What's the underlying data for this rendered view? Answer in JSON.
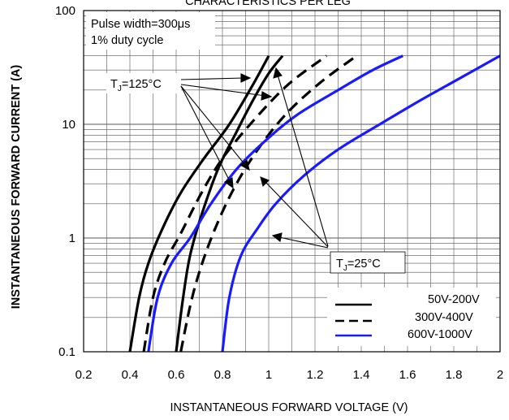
{
  "chart_data": {
    "type": "line",
    "title": "CHARACTERISTICS PER LEG",
    "xlabel": "INSTANTANEOUS FORWARD VOLTAGE (V)",
    "ylabel": "INSTANTANEOUS FORWARD CURRENT (A)",
    "xlim": [
      0.2,
      2.0
    ],
    "ylim": [
      0.1,
      100
    ],
    "yscale": "log",
    "grid": true,
    "x_ticks": [
      "0.2",
      "0.4",
      "0.6",
      "0.8",
      "1",
      "1.2",
      "1.4",
      "1.6",
      "1.8",
      "2"
    ],
    "y_ticks": [
      "0.1",
      "1",
      "10",
      "100"
    ],
    "notes": [
      "Pulse width=300μs",
      "1% duty cycle"
    ],
    "annotations": [
      {
        "prefix": "T",
        "sub": "J",
        "suffix": "=125°C"
      },
      {
        "prefix": "T",
        "sub": "J",
        "suffix": "=25°C"
      }
    ],
    "legend": {
      "position": "bottom-right",
      "entries": [
        {
          "label": "50V-200V",
          "style": "solid",
          "color": "#000000"
        },
        {
          "label": "300V-400V",
          "style": "dashed",
          "color": "#000000"
        },
        {
          "label": "600V-1000V",
          "style": "solid",
          "color": "#1a1aff"
        }
      ]
    },
    "series": [
      {
        "group": "50V-200V",
        "temperature": "125°C",
        "color": "#000000",
        "style": "solid",
        "points": [
          [
            0.4,
            0.1
          ],
          [
            0.44,
            0.3
          ],
          [
            0.48,
            0.6
          ],
          [
            0.54,
            1.2
          ],
          [
            0.62,
            2.5
          ],
          [
            0.72,
            5.0
          ],
          [
            0.83,
            10
          ],
          [
            0.93,
            22
          ],
          [
            1.0,
            40
          ]
        ]
      },
      {
        "group": "50V-200V",
        "temperature": "25°C",
        "color": "#000000",
        "style": "solid",
        "points": [
          [
            0.6,
            0.1
          ],
          [
            0.63,
            0.3
          ],
          [
            0.66,
            0.7
          ],
          [
            0.71,
            1.6
          ],
          [
            0.78,
            4.0
          ],
          [
            0.86,
            8.5
          ],
          [
            0.93,
            16
          ],
          [
            1.0,
            28
          ],
          [
            1.06,
            40
          ]
        ]
      },
      {
        "group": "300V-400V",
        "temperature": "125°C",
        "color": "#000000",
        "style": "dashed",
        "points": [
          [
            0.46,
            0.1
          ],
          [
            0.5,
            0.3
          ],
          [
            0.55,
            0.6
          ],
          [
            0.62,
            1.1
          ],
          [
            0.71,
            2.5
          ],
          [
            0.8,
            5.0
          ],
          [
            0.92,
            10
          ],
          [
            1.08,
            22
          ],
          [
            1.25,
            40
          ]
        ]
      },
      {
        "group": "300V-400V",
        "temperature": "25°C",
        "color": "#000000",
        "style": "dashed",
        "points": [
          [
            0.62,
            0.1
          ],
          [
            0.66,
            0.25
          ],
          [
            0.7,
            0.5
          ],
          [
            0.76,
            1.1
          ],
          [
            0.84,
            2.5
          ],
          [
            0.94,
            5.5
          ],
          [
            1.07,
            12
          ],
          [
            1.22,
            23
          ],
          [
            1.38,
            40
          ]
        ]
      },
      {
        "group": "600V-1000V",
        "temperature": "125°C",
        "color": "#1a1aff",
        "style": "solid",
        "points": [
          [
            0.48,
            0.1
          ],
          [
            0.52,
            0.3
          ],
          [
            0.58,
            0.6
          ],
          [
            0.66,
            1.0
          ],
          [
            0.75,
            2.0
          ],
          [
            0.86,
            4.0
          ],
          [
            0.98,
            7.0
          ],
          [
            1.12,
            12
          ],
          [
            1.3,
            20
          ],
          [
            1.45,
            30
          ],
          [
            1.58,
            40
          ]
        ]
      },
      {
        "group": "600V-1000V",
        "temperature": "25°C",
        "color": "#1a1aff",
        "style": "solid",
        "points": [
          [
            0.8,
            0.1
          ],
          [
            0.83,
            0.3
          ],
          [
            0.88,
            0.7
          ],
          [
            0.95,
            1.2
          ],
          [
            1.03,
            2.0
          ],
          [
            1.15,
            3.5
          ],
          [
            1.3,
            6.0
          ],
          [
            1.48,
            10
          ],
          [
            1.65,
            16
          ],
          [
            1.82,
            25
          ],
          [
            2.0,
            40
          ]
        ]
      }
    ]
  }
}
